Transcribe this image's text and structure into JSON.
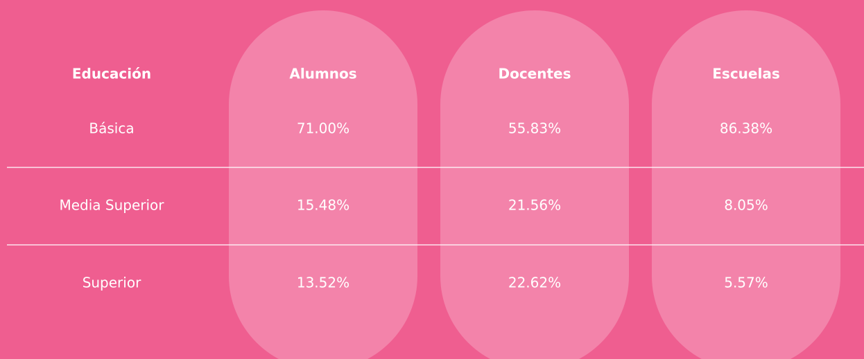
{
  "table": {
    "headers": [
      "Educación",
      "Alumnos",
      "Docentes",
      "Escuelas"
    ],
    "rows": [
      [
        "Básica",
        "71.00%",
        "55.83%",
        "86.38%"
      ],
      [
        "Media Superior",
        "15.48%",
        "21.56%",
        "8.05%"
      ],
      [
        "Superior",
        "13.52%",
        "22.62%",
        "5.57%"
      ]
    ]
  }
}
